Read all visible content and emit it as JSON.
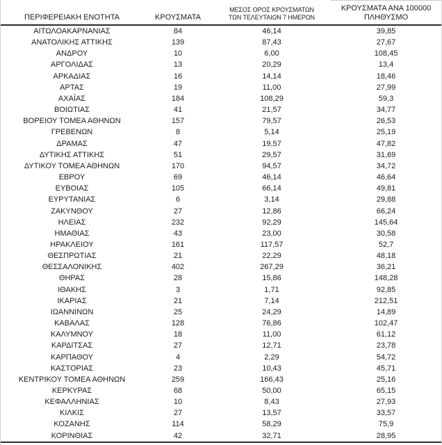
{
  "header": {
    "col1": "ΠΕΡΙΦΕΡΕΙΑΚΗ ΕΝΟΤΗΤΑ",
    "col2": "ΚΡΟΥΣΜΑΤΑ",
    "col3_line1": "ΜΕΣΟΣ ΟΡΟΣ ΚΡΟΥΣΜΑΤΩΝ",
    "col3_line2": "ΤΩΝ ΤΕΛΕΥΤΑΙΩΝ 7 ΗΜΕΡΩΝ",
    "col4_line1": "ΚΡΟΥΣΜΑΤΑ ΑΝΑ 100000",
    "col4_line2": "ΠΛΗΘΥΣΜΟ"
  },
  "colors": {
    "text": "#1c1c1c",
    "rule_dark": "#2a2a2a",
    "rule_light": "#c9c9c9",
    "background": "#ffffff"
  },
  "chart_data": {
    "type": "table",
    "columns": [
      "ΠΕΡΙΦΕΡΕΙΑΚΗ ΕΝΟΤΗΤΑ",
      "ΚΡΟΥΣΜΑΤΑ",
      "ΜΕΣΟΣ ΟΡΟΣ ΚΡΟΥΣΜΑΤΩΝ ΤΩΝ ΤΕΛΕΥΤΑΙΩΝ 7 ΗΜΕΡΩΝ",
      "ΚΡΟΥΣΜΑΤΑ ΑΝΑ 100000 ΠΛΗΘΥΣΜΟ"
    ],
    "rows": [
      [
        "ΑΙΤΩΛΟΑΚΑΡΝΑΝΙΑΣ",
        "84",
        "46,14",
        "39,85"
      ],
      [
        "ΑΝΑΤΟΛΙΚΗΣ ΑΤΤΙΚΗΣ",
        "139",
        "87,43",
        "27,67"
      ],
      [
        "ΑΝΔΡΟΥ",
        "10",
        "6,00",
        "108,45"
      ],
      [
        "ΑΡΓΟΛΙΔΑΣ",
        "13",
        "20,29",
        "13,4"
      ],
      [
        "ΑΡΚΑΔΙΑΣ",
        "16",
        "14,14",
        "18,46"
      ],
      [
        "ΑΡΤΑΣ",
        "19",
        "11,00",
        "27,99"
      ],
      [
        "ΑΧΑΪΑΣ",
        "184",
        "108,29",
        "59,3"
      ],
      [
        "ΒΟΙΩΤΙΑΣ",
        "41",
        "21,57",
        "34,77"
      ],
      [
        "ΒΟΡΕΙΟΥ ΤΟΜΕΑ ΑΘΗΝΩΝ",
        "157",
        "79,57",
        "26,53"
      ],
      [
        "ΓΡΕΒΕΝΩΝ",
        "8",
        "5,14",
        "25,19"
      ],
      [
        "ΔΡΑΜΑΣ",
        "47",
        "19,57",
        "47,82"
      ],
      [
        "ΔΥΤΙΚΗΣ ΑΤΤΙΚΗΣ",
        "51",
        "29,57",
        "31,69"
      ],
      [
        "ΔΥΤΙΚΟΥ ΤΟΜΕΑ ΑΘΗΝΩΝ",
        "170",
        "94,57",
        "34,72"
      ],
      [
        "ΕΒΡΟΥ",
        "69",
        "46,14",
        "46,64"
      ],
      [
        "ΕΥΒΟΙΑΣ",
        "105",
        "66,14",
        "49,81"
      ],
      [
        "ΕΥΡΥΤΑΝΙΑΣ",
        "6",
        "3,14",
        "29,88"
      ],
      [
        "ΖΑΚΥΝΘΟΥ",
        "27",
        "12,86",
        "66,24"
      ],
      [
        "ΗΛΕΙΑΣ",
        "232",
        "92,29",
        "145,64"
      ],
      [
        "ΗΜΑΘΙΑΣ",
        "43",
        "23,00",
        "30,58"
      ],
      [
        "ΗΡΑΚΛΕΙΟΥ",
        "161",
        "117,57",
        "52,7"
      ],
      [
        "ΘΕΣΠΡΩΤΙΑΣ",
        "21",
        "22,29",
        "48,18"
      ],
      [
        "ΘΕΣΣΑΛΟΝΙΚΗΣ",
        "402",
        "267,29",
        "36,21"
      ],
      [
        "ΘΗΡΑΣ",
        "28",
        "15,86",
        "148,28"
      ],
      [
        "ΙΘΑΚΗΣ",
        "3",
        "1,71",
        "92,85"
      ],
      [
        "ΙΚΑΡΙΑΣ",
        "21",
        "7,14",
        "212,51"
      ],
      [
        "ΙΩΑΝΝΙΝΩΝ",
        "25",
        "24,29",
        "14,89"
      ],
      [
        "ΚΑΒΑΛΑΣ",
        "128",
        "76,86",
        "102,47"
      ],
      [
        "ΚΑΛΥΜΝΟΥ",
        "18",
        "11,00",
        "61,12"
      ],
      [
        "ΚΑΡΔΙΤΣΑΣ",
        "27",
        "12,71",
        "23,78"
      ],
      [
        "ΚΑΡΠΑΘΟΥ",
        "4",
        "2,29",
        "54,72"
      ],
      [
        "ΚΑΣΤΟΡΙΑΣ",
        "23",
        "10,43",
        "45,71"
      ],
      [
        "ΚΕΝΤΡΙΚΟΥ ΤΟΜΕΑ ΑΘΗΝΩΝ",
        "259",
        "166,43",
        "25,16"
      ],
      [
        "ΚΕΡΚΥΡΑΣ",
        "68",
        "50,00",
        "65,15"
      ],
      [
        "ΚΕΦΑΛΛΗΝΙΑΣ",
        "10",
        "8,43",
        "27,93"
      ],
      [
        "ΚΙΛΚΙΣ",
        "27",
        "13,57",
        "33,57"
      ],
      [
        "ΚΟΖΑΝΗΣ",
        "114",
        "58,29",
        "75,9"
      ],
      [
        "ΚΟΡΙΝΘΙΑΣ",
        "42",
        "32,71",
        "28,95"
      ]
    ]
  }
}
